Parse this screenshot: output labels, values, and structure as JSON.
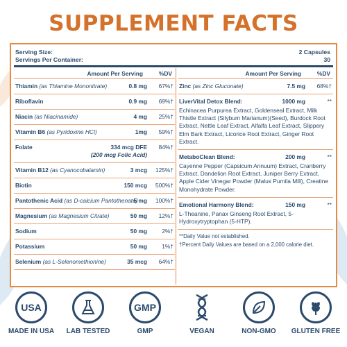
{
  "title": "SUPPLEMENT FACTS",
  "serving": {
    "size_label": "Serving Size:",
    "size_value": "2 Capsules",
    "per_container_label": "Servings Per Container:",
    "per_container_value": "30"
  },
  "headers": {
    "amount": "Amount Per Serving",
    "dv": "%DV"
  },
  "left_rows": [
    {
      "name": "Thiamin",
      "note": "(as Thiamine Mononitrate)",
      "amount": "0.8 mg",
      "dv": "67%†"
    },
    {
      "name": "Riboflavin",
      "note": "",
      "amount": "0.9 mg",
      "dv": "69%†"
    },
    {
      "name": "Niacin",
      "note": "(as Niacinamide)",
      "amount": "4 mg",
      "dv": "25%†"
    },
    {
      "name": "Vitamin B6",
      "note": "(as Pyridoxine HCl)",
      "amount": "1mg",
      "dv": "59%†"
    },
    {
      "name": "Folate",
      "note": "",
      "amount": "334 mcg DFE",
      "dv": "84%†",
      "sub": "(200 mcg Folic Acid)"
    },
    {
      "name": "Vitamin B12",
      "note": "(as Cyanocobalamin)",
      "amount": "3 mcg",
      "dv": "125%†"
    },
    {
      "name": "Biotin",
      "note": "",
      "amount": "150 mcg",
      "dv": "500%†"
    },
    {
      "name": "Pantothenic Acid",
      "note": "(as D-calcium Pantothenate)",
      "amount": "5 mg",
      "dv": "100%†"
    },
    {
      "name": "Magnesium",
      "note": "(as Magnesium Citrate)",
      "amount": "50 mg",
      "dv": "12%†"
    },
    {
      "name": "Sodium",
      "note": "",
      "amount": "50 mg",
      "dv": "2%†"
    },
    {
      "name": "Potassium",
      "note": "",
      "amount": "50 mg",
      "dv": "1%†"
    },
    {
      "name": "Selenium",
      "note": "(as L-Selenomethionine)",
      "amount": "35 mcg",
      "dv": "64%†"
    }
  ],
  "right_rows": [
    {
      "name": "Zinc",
      "note": "(as Zinc Gluconate)",
      "amount": "7.5 mg",
      "dv": "68%†",
      "desc": ""
    },
    {
      "name": "LiverVital Detox Blend:",
      "note": "",
      "amount": "1000 mg",
      "dv": "**",
      "desc": "Echinacea Purpurea Extract, Goldenseal Extract, Milk Thistle Extract (Silybum Marianum)(Seed), Burdock Root Extract, Nettle Leaf Extract, Alfalfa Leaf Extract, Slippery Elm Bark Extract, Licorice Root Extract, Ginger Root Extract."
    },
    {
      "name": "MetaboClean Blend:",
      "note": "",
      "amount": "200 mg",
      "dv": "**",
      "desc": "Cayenne Pepper (Capsicum Annuum) Extract, Cranberry Extract, Dandelion Root Extract, Juniper Berry Extract, Apple Cider Vinegar Powder (Malus Pumila Mill), Creatine Monohydrate Powder."
    },
    {
      "name": "Emotional Harmony Blend:",
      "note": "",
      "amount": "150 mg",
      "dv": "**",
      "desc": "L-Theanine, Panax Ginseng Root Extract, 5-Hydroxytryptophan (5-HTP)."
    }
  ],
  "footnotes": {
    "daily": "**Daily Value not established.",
    "percent": "†Percent Daily Values are based on a 2,000 calorie diet."
  },
  "badges": [
    {
      "icon": "usa-icon",
      "symbol": "USA",
      "label": "MADE IN USA"
    },
    {
      "icon": "lab-flask-icon",
      "symbol": "",
      "label": "LAB TESTED"
    },
    {
      "icon": "gmp-icon",
      "symbol": "GMP",
      "label": "GMP"
    },
    {
      "icon": "dna-icon",
      "symbol": "",
      "label": "VEGAN"
    },
    {
      "icon": "leaf-icon",
      "symbol": "",
      "label": "NON-GMO"
    },
    {
      "icon": "wheat-icon",
      "symbol": "",
      "label": "GLUTEN FREE"
    }
  ],
  "colors": {
    "accent": "#d4712a",
    "border": "#e48a45",
    "text": "#2b4a6b"
  }
}
